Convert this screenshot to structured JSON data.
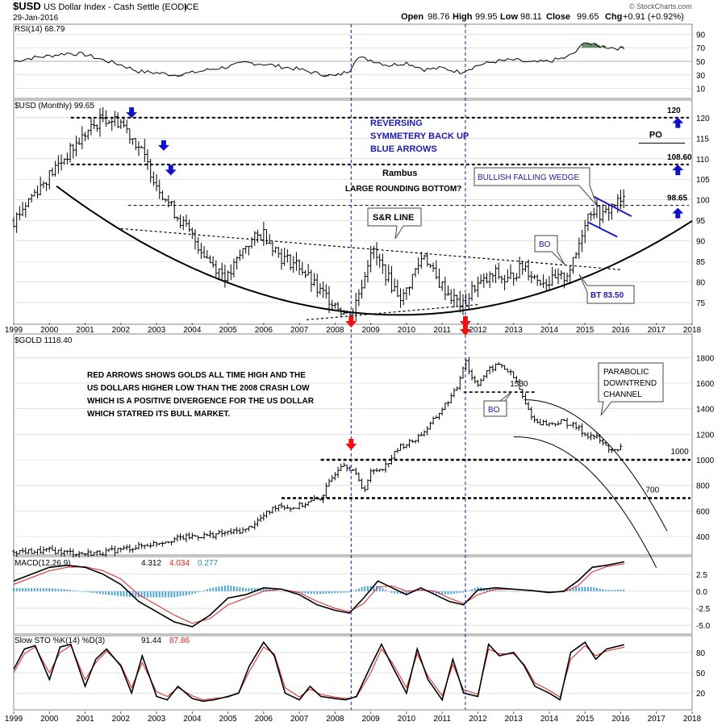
{
  "header": {
    "symbol": "$USD",
    "name": "US Dollar Index - Cash Settle (EOD)",
    "exchange": "ICE",
    "date": "29-Jan-2016",
    "open_label": "Open",
    "open": "98.76",
    "high_label": "High",
    "high": "99.95",
    "low_label": "Low",
    "low": "98.11",
    "close_label": "Close",
    "close": "99.65",
    "chg_label": "Chg",
    "chg": "+0.91 (+0.92%)",
    "watermark": "© StockCharts.com"
  },
  "colors": {
    "bar": "#000000",
    "guide": "#1a1aa0",
    "note_blue": "#1a1ab0",
    "arrow_red": "#ee1111",
    "arrow_blue": "#1111cc",
    "rsi_fill_up": "#5c8a5c",
    "rsi_fill_down": "#9a6060",
    "macd_hist": "#4da6d6",
    "signal_red": "#dd2222",
    "panel_border": "#888888",
    "grid": "#cfcfcf"
  },
  "x_axis": {
    "labels": [
      "1999",
      "2000",
      "2001",
      "2002",
      "2003",
      "2004",
      "2005",
      "2006",
      "2007",
      "2008",
      "2009",
      "2010",
      "2011",
      "2012",
      "2013",
      "2014",
      "2015",
      "2016",
      "2017",
      "2018"
    ]
  },
  "chart_data": [
    {
      "panel": "rsi",
      "type": "line",
      "title": "RSI(14) 68.79",
      "indicator": "RSI(14)",
      "last": 68.79,
      "y_ticks": [
        90,
        70,
        50,
        30,
        10
      ],
      "ylim": [
        0,
        100
      ],
      "x": [
        1999.0,
        1999.5,
        2000.0,
        2000.5,
        2001.0,
        2001.5,
        2002.0,
        2002.5,
        2003.0,
        2003.5,
        2004.0,
        2004.5,
        2005.0,
        2005.5,
        2006.0,
        2006.5,
        2007.0,
        2007.5,
        2008.0,
        2008.4,
        2008.6,
        2009.0,
        2009.5,
        2010.0,
        2010.5,
        2011.0,
        2011.5,
        2012.0,
        2012.5,
        2013.0,
        2013.5,
        2014.0,
        2014.5,
        2014.8,
        2015.0,
        2015.2,
        2015.5,
        2015.8,
        2016.0,
        2016.1
      ],
      "values": [
        50,
        55,
        58,
        62,
        60,
        52,
        45,
        35,
        33,
        30,
        33,
        38,
        42,
        48,
        46,
        42,
        38,
        32,
        28,
        36,
        56,
        52,
        44,
        48,
        38,
        40,
        34,
        44,
        50,
        52,
        48,
        50,
        56,
        66,
        80,
        74,
        72,
        70,
        69,
        68.79
      ]
    },
    {
      "panel": "usd",
      "type": "ohlc",
      "title": "$USD (Monthly) 99.65",
      "last": 99.65,
      "y_ticks": [
        120,
        115,
        110,
        105,
        100,
        95,
        90,
        85,
        80,
        75
      ],
      "ylim": [
        70.5,
        123.5
      ],
      "anchors_x": [
        1999.0,
        1999.5,
        2000.0,
        2000.5,
        2001.0,
        2001.5,
        2002.0,
        2002.5,
        2003.0,
        2003.5,
        2004.0,
        2004.5,
        2005.0,
        2005.5,
        2006.0,
        2006.5,
        2007.0,
        2007.5,
        2008.0,
        2008.3,
        2008.5,
        2008.8,
        2009.0,
        2009.3,
        2009.6,
        2009.9,
        2010.2,
        2010.5,
        2010.8,
        2011.0,
        2011.3,
        2011.6,
        2011.9,
        2012.2,
        2012.5,
        2012.8,
        2013.0,
        2013.3,
        2013.6,
        2014.0,
        2014.4,
        2014.7,
        2015.0,
        2015.2,
        2015.5,
        2015.8,
        2016.1
      ],
      "anchors_y": [
        95,
        101,
        106,
        111,
        116,
        120,
        119,
        113,
        104,
        97,
        91,
        85,
        81,
        89,
        92,
        86,
        84,
        78,
        75,
        72,
        73,
        81,
        88,
        84,
        79,
        76,
        82,
        87,
        81,
        79,
        76,
        74,
        79,
        80,
        82,
        80,
        82,
        84,
        81,
        80,
        81,
        85,
        95,
        98,
        96,
        99,
        99.65
      ],
      "levels": [
        120,
        108.6,
        98.65
      ],
      "level_labels": [
        "120",
        "108.60",
        "98.65"
      ],
      "po_label": "PO",
      "sr_line": {
        "x1": 2002.0,
        "y1": 93.0,
        "x2": 2016.0,
        "y2": 83.0
      },
      "support_line": {
        "x1": 2007.2,
        "y1": 70.8,
        "x2": 2012.0,
        "y2": 74.5
      },
      "wedge_top": {
        "x1": 2015.2,
        "y1": 101.0,
        "x2": 2016.3,
        "y2": 96.0
      },
      "wedge_bottom": {
        "x1": 2015.1,
        "y1": 94.5,
        "x2": 2015.9,
        "y2": 91.0
      }
    },
    {
      "panel": "gold",
      "type": "ohlc",
      "title": "$GOLD 1118.40",
      "last": 1118.4,
      "y_ticks": [
        1800,
        1600,
        1400,
        1200,
        1000,
        800,
        600,
        400
      ],
      "ylim": [
        280,
        1960
      ],
      "anchors_x": [
        1999.0,
        1999.5,
        2000.0,
        2000.5,
        2001.0,
        2001.5,
        2002.0,
        2002.5,
        2003.0,
        2003.5,
        2004.0,
        2004.5,
        2005.0,
        2005.5,
        2006.0,
        2006.4,
        2006.8,
        2007.2,
        2007.6,
        2008.0,
        2008.2,
        2008.5,
        2008.8,
        2009.0,
        2009.4,
        2009.8,
        2010.2,
        2010.6,
        2011.0,
        2011.4,
        2011.65,
        2011.8,
        2012.0,
        2012.3,
        2012.6,
        2012.9,
        2013.1,
        2013.3,
        2013.6,
        2014.0,
        2014.4,
        2014.8,
        2015.0,
        2015.3,
        2015.6,
        2015.9,
        2016.08
      ],
      "anchors_y": [
        285,
        280,
        290,
        275,
        265,
        275,
        300,
        320,
        350,
        380,
        400,
        410,
        430,
        450,
        560,
        650,
        620,
        660,
        700,
        900,
        980,
        920,
        760,
        900,
        950,
        1100,
        1150,
        1250,
        1400,
        1550,
        1800,
        1650,
        1600,
        1700,
        1750,
        1680,
        1600,
        1450,
        1300,
        1280,
        1300,
        1250,
        1200,
        1180,
        1100,
        1060,
        1118.4
      ],
      "levels": [
        1530,
        1000,
        700
      ],
      "level_labels": [
        "1530",
        "1000",
        "700"
      ]
    },
    {
      "panel": "macd",
      "type": "line",
      "title": "MACD(12,26,9)",
      "indicator": "MACD(12,26,9)",
      "macd": 4.312,
      "signal": 4.034,
      "histogram": 0.277,
      "y_ticks": [
        2.5,
        0.0,
        -2.5,
        -5.0
      ],
      "ylim": [
        -5.8,
        4.6
      ],
      "x": [
        1999.0,
        1999.5,
        2000.0,
        2000.5,
        2001.0,
        2001.5,
        2002.0,
        2002.5,
        2003.0,
        2003.5,
        2004.0,
        2004.5,
        2005.0,
        2005.5,
        2006.0,
        2006.5,
        2007.0,
        2007.5,
        2008.0,
        2008.4,
        2008.8,
        2009.2,
        2009.6,
        2010.0,
        2010.4,
        2010.8,
        2011.2,
        2011.6,
        2012.0,
        2012.5,
        2013.0,
        2013.5,
        2014.0,
        2014.4,
        2014.8,
        2015.2,
        2015.6,
        2016.1
      ],
      "macd_values": [
        1.5,
        2.5,
        3.5,
        3.8,
        3.5,
        2.5,
        1.0,
        -1.5,
        -3.0,
        -4.5,
        -5.2,
        -3.5,
        -1.0,
        -0.5,
        0.5,
        0.3,
        -0.5,
        -2.0,
        -2.8,
        -3.2,
        -1.0,
        1.5,
        0.5,
        -0.5,
        0.5,
        -0.5,
        -1.5,
        -2.0,
        0.2,
        0.5,
        0.3,
        0.1,
        -0.2,
        0.0,
        1.5,
        3.5,
        3.8,
        4.312
      ],
      "signal_values": [
        1.0,
        2.0,
        3.0,
        3.5,
        3.6,
        3.0,
        1.8,
        -0.5,
        -2.0,
        -3.5,
        -4.7,
        -4.0,
        -2.0,
        -1.0,
        0.0,
        0.3,
        -0.2,
        -1.5,
        -2.5,
        -3.0,
        -1.8,
        0.6,
        0.8,
        0.0,
        0.2,
        0.0,
        -1.0,
        -1.8,
        -0.5,
        0.3,
        0.3,
        0.1,
        -0.1,
        -0.1,
        0.8,
        2.8,
        3.6,
        4.034
      ]
    },
    {
      "panel": "sto",
      "type": "line",
      "title": "Slow STO %K(14) %D(3)",
      "indicator": "Slow STO %K(14) %D(3)",
      "k": 91.44,
      "d": 87.86,
      "y_ticks": [
        80,
        50,
        20
      ],
      "ylim": [
        0,
        100
      ],
      "x": [
        1999.0,
        1999.3,
        1999.6,
        2000.0,
        2000.3,
        2000.6,
        2001.0,
        2001.3,
        2001.6,
        2002.0,
        2002.3,
        2002.6,
        2003.0,
        2003.3,
        2003.6,
        2004.0,
        2004.3,
        2004.6,
        2005.0,
        2005.3,
        2005.6,
        2006.0,
        2006.3,
        2006.6,
        2007.0,
        2007.3,
        2007.6,
        2008.0,
        2008.3,
        2008.6,
        2009.0,
        2009.3,
        2009.6,
        2010.0,
        2010.3,
        2010.6,
        2011.0,
        2011.3,
        2011.6,
        2012.0,
        2012.3,
        2012.6,
        2013.0,
        2013.3,
        2013.6,
        2014.0,
        2014.3,
        2014.6,
        2015.0,
        2015.3,
        2015.6,
        2016.1
      ],
      "k_values": [
        55,
        85,
        90,
        40,
        88,
        92,
        30,
        70,
        85,
        60,
        20,
        75,
        15,
        10,
        30,
        12,
        8,
        10,
        15,
        20,
        60,
        95,
        75,
        20,
        10,
        30,
        15,
        12,
        10,
        15,
        60,
        92,
        60,
        20,
        85,
        40,
        10,
        70,
        20,
        15,
        92,
        75,
        80,
        60,
        30,
        20,
        10,
        80,
        95,
        70,
        85,
        91.44
      ],
      "d_values": [
        50,
        78,
        88,
        50,
        80,
        90,
        40,
        65,
        82,
        62,
        28,
        65,
        22,
        15,
        28,
        16,
        10,
        12,
        14,
        20,
        52,
        88,
        78,
        28,
        14,
        26,
        18,
        14,
        12,
        14,
        50,
        85,
        65,
        28,
        78,
        45,
        16,
        62,
        25,
        18,
        85,
        78,
        78,
        62,
        35,
        24,
        14,
        70,
        90,
        75,
        82,
        87.86
      ]
    }
  ],
  "annotations": {
    "reversing": [
      "REVERSING",
      "SYMMETERY  BACK UP",
      "BLUE ARROWS"
    ],
    "rambus": "Rambus",
    "rounding_bottom": "LARGE ROUNDING BOTTOM?",
    "sr_line": "S&R LINE",
    "wedge": "BULLISH FALLING WEDGE",
    "bo_usd": "BO",
    "bt": "BT 83.50",
    "bo_gold": "BO",
    "red_arrows": [
      "RED ARROWS SHOWS GOLDS ALL TIME HIGH AND THE",
      "US DOLLARS HIGHER LOW THAN THE 2008 CRASH LOW",
      "WHICH IS A POSITIVE DIVERGENCE FOR THE US DOLLAR",
      "WHICH STATRED ITS BULL MARKET."
    ],
    "parabolic": [
      "PARABOLIC",
      "DOWNTREND",
      "CHANNEL"
    ]
  }
}
